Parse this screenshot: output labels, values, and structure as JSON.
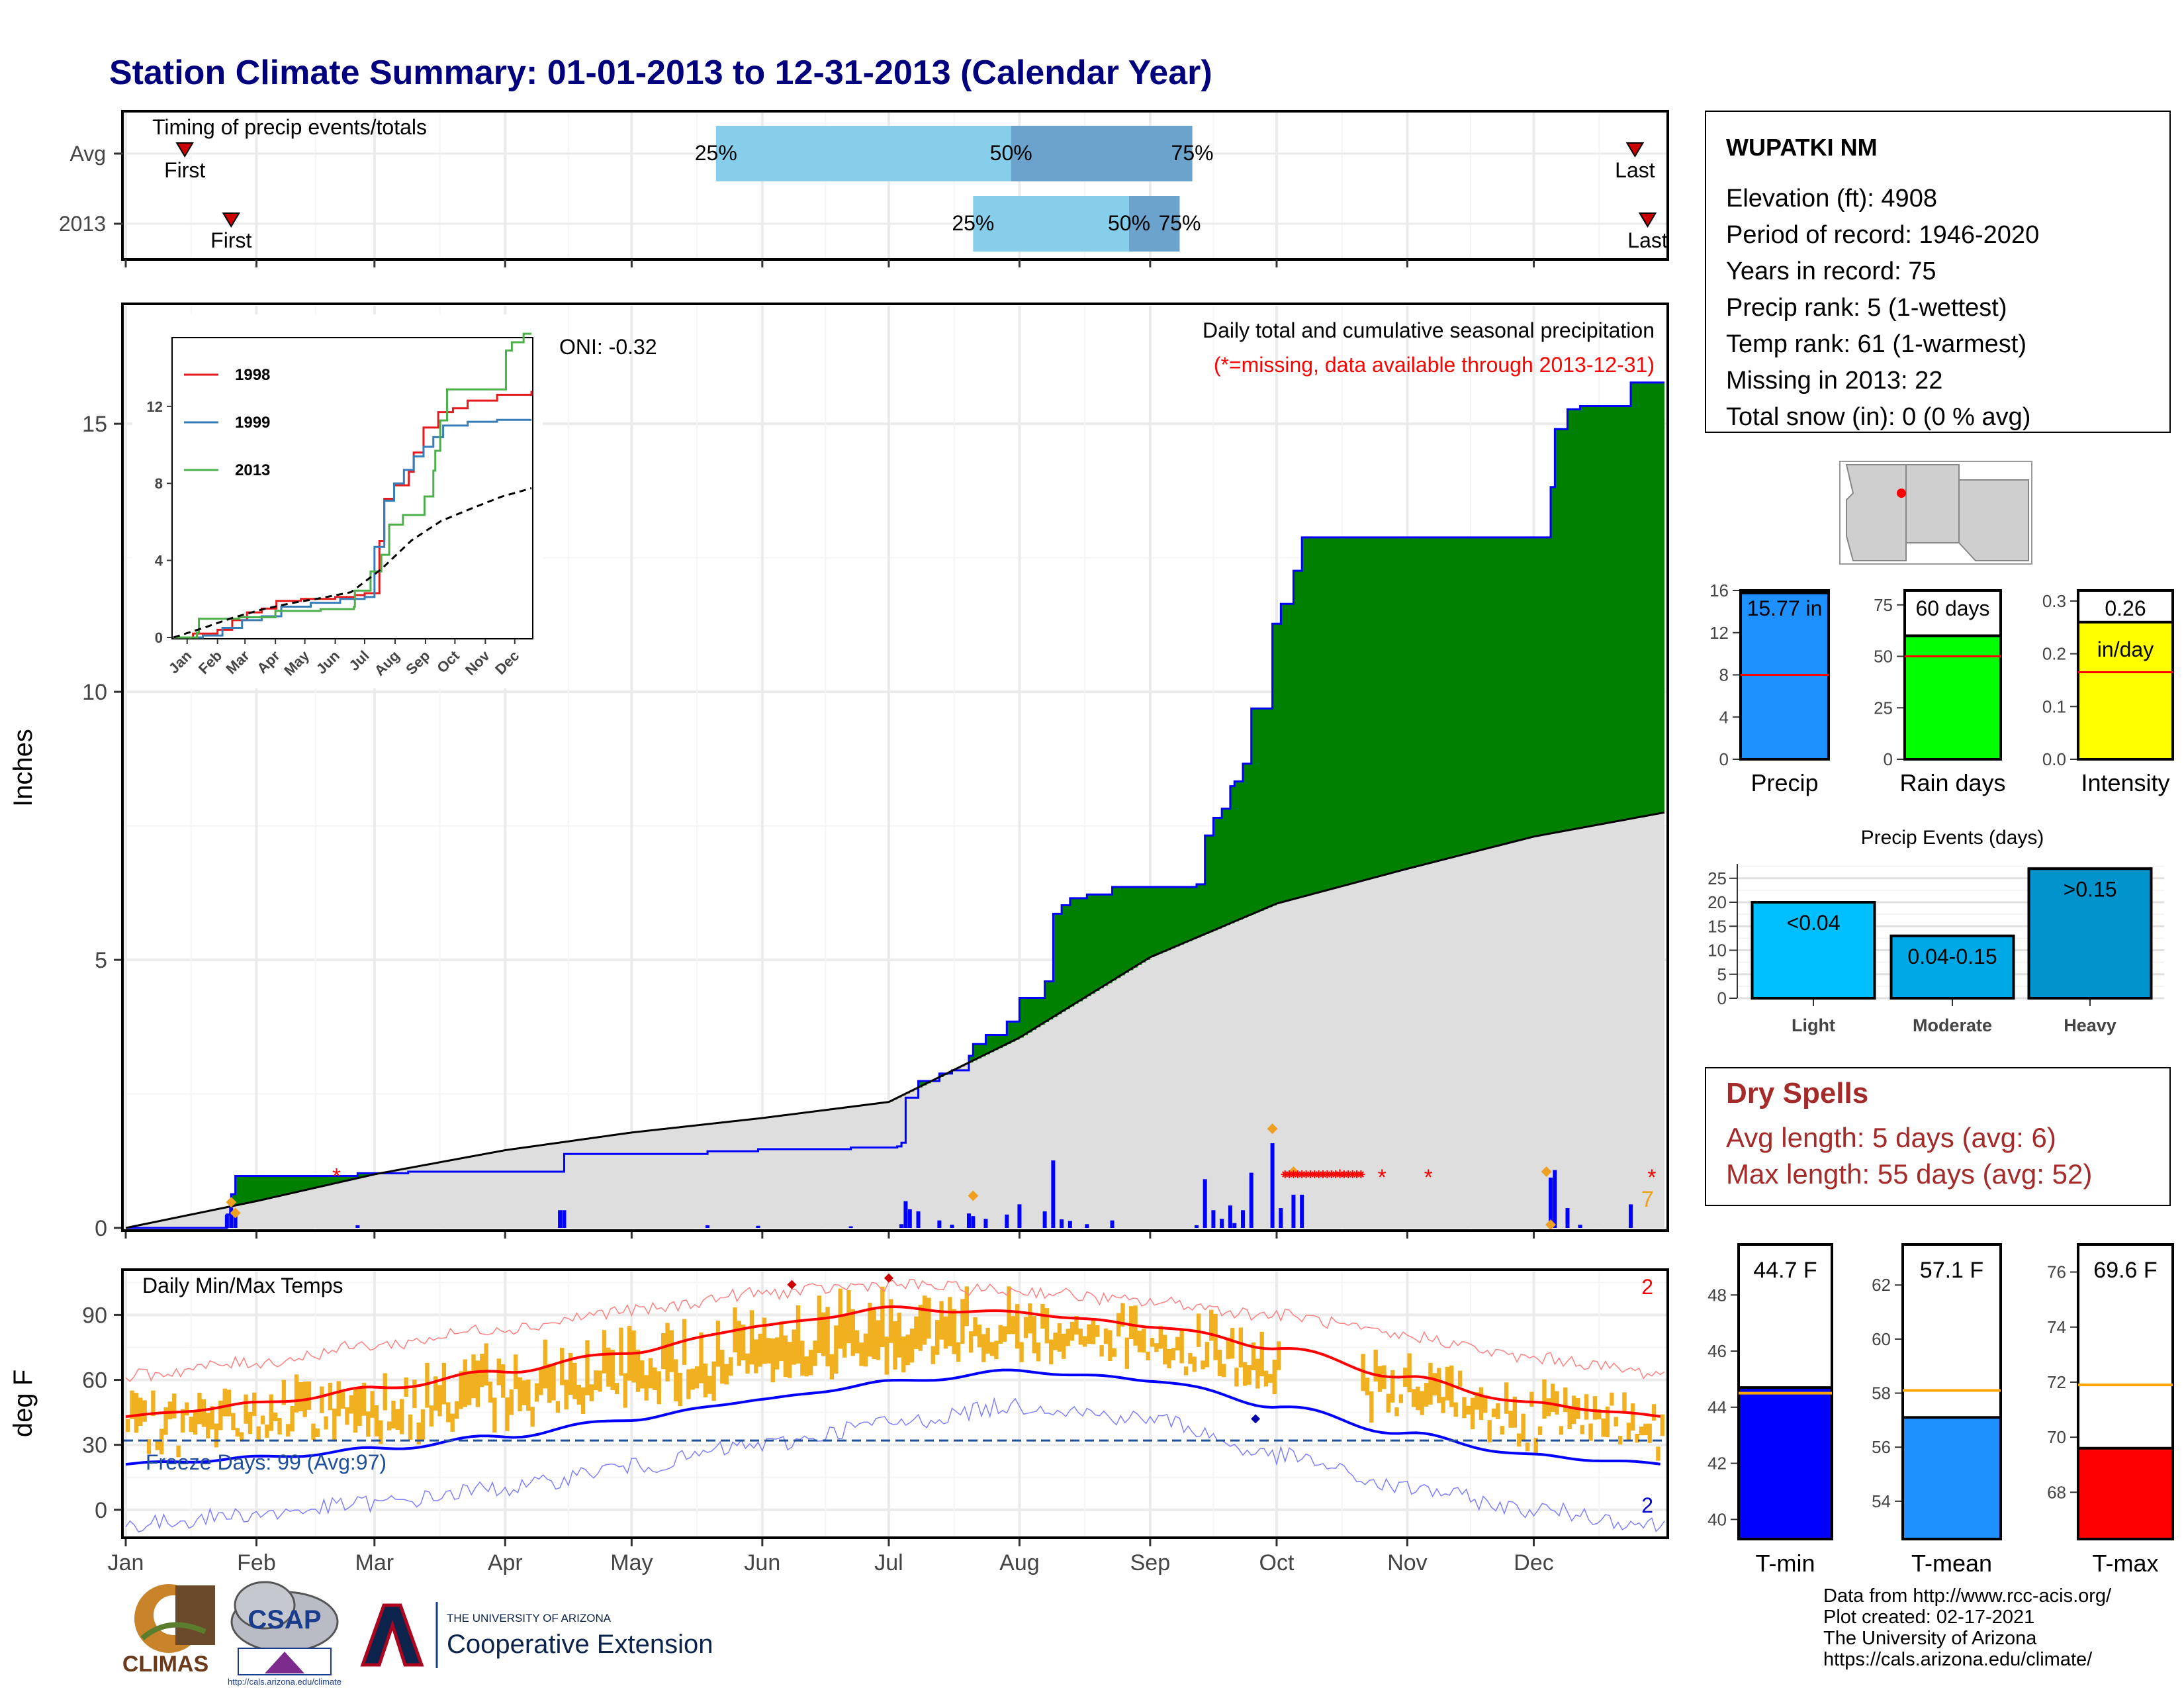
{
  "title": "Station Climate Summary: 01-01-2013 to 12-31-2013 (Calendar Year)",
  "colors": {
    "title": "#00007f",
    "cum_current": "#008000",
    "cum_deficit": "#7f5200",
    "cum_avg": "#dedede",
    "daily_bar": "#0000ff",
    "temp_bar": "#f0b020",
    "tmax_avg": "#ff0000",
    "tmin_avg": "#0000ff",
    "missing": "#ff0000",
    "dry_spells_text": "#a52a2a",
    "timing_light": "#87ceeb",
    "timing_dark": "#6ba3cc"
  },
  "months": [
    "Jan",
    "Feb",
    "Mar",
    "Apr",
    "May",
    "Jun",
    "Jul",
    "Aug",
    "Sep",
    "Oct",
    "Nov",
    "Dec"
  ],
  "timing": {
    "label": "Timing of precip events/totals",
    "rows": [
      {
        "name": "Avg",
        "first_label": "First",
        "last_label": "Last",
        "first_doy": 14,
        "last_doy": 358,
        "p25_doy": 140,
        "p50_doy": 210,
        "p75_doy": 253,
        "l25": "25%",
        "l50": "50%",
        "l75": "75%"
      },
      {
        "name": "2013",
        "first_label": "First",
        "last_label": "Last",
        "first_doy": 25,
        "last_doy": 361,
        "p25_doy": 201,
        "p50_doy": 238,
        "p75_doy": 250,
        "l25": "25%",
        "l50": "50%",
        "l75": "75%"
      }
    ]
  },
  "main_chart": {
    "ylabel": "Inches",
    "right_title": "Daily total and cumulative seasonal precipitation",
    "missing_note": "(*=missing, data available through 2013-12-31)",
    "oni": "ONI: -0.32",
    "ylim": [
      0,
      17.2
    ],
    "yticks": [
      "0",
      "5",
      "10",
      "15"
    ],
    "cum_steps": [
      [
        0,
        0
      ],
      [
        24,
        0.25
      ],
      [
        25,
        0.63
      ],
      [
        26,
        0.97
      ],
      [
        40,
        0.97
      ],
      [
        55,
        1.02
      ],
      [
        66,
        1.02
      ],
      [
        67,
        1.05
      ],
      [
        103,
        1.05
      ],
      [
        104,
        1.38
      ],
      [
        138,
        1.43
      ],
      [
        150,
        1.47
      ],
      [
        165,
        1.47
      ],
      [
        172,
        1.5
      ],
      [
        183,
        1.52
      ],
      [
        184,
        1.59
      ],
      [
        185,
        2.43
      ],
      [
        188,
        2.74
      ],
      [
        193,
        2.88
      ],
      [
        196,
        2.94
      ],
      [
        200,
        3.21
      ],
      [
        201,
        3.43
      ],
      [
        204,
        3.6
      ],
      [
        209,
        3.85
      ],
      [
        212,
        4.29
      ],
      [
        214,
        4.29
      ],
      [
        218,
        4.6
      ],
      [
        220,
        5.86
      ],
      [
        222,
        6.02
      ],
      [
        224,
        6.15
      ],
      [
        228,
        6.22
      ],
      [
        234,
        6.36
      ],
      [
        254,
        6.41
      ],
      [
        256,
        7.32
      ],
      [
        258,
        7.65
      ],
      [
        260,
        7.82
      ],
      [
        262,
        8.24
      ],
      [
        263,
        8.33
      ],
      [
        265,
        8.66
      ],
      [
        267,
        9.69
      ],
      [
        272,
        11.27
      ],
      [
        274,
        11.64
      ],
      [
        277,
        12.26
      ],
      [
        279,
        12.88
      ],
      [
        337,
        12.88
      ],
      [
        338,
        13.82
      ],
      [
        339,
        14.9
      ],
      [
        342,
        15.27
      ],
      [
        345,
        15.33
      ],
      [
        355,
        15.33
      ],
      [
        357,
        15.77
      ],
      [
        365,
        15.77
      ]
    ],
    "avg_cum_points": [
      [
        0,
        0
      ],
      [
        31,
        0.5
      ],
      [
        59,
        1.0
      ],
      [
        90,
        1.45
      ],
      [
        120,
        1.78
      ],
      [
        151,
        2.05
      ],
      [
        181,
        2.35
      ],
      [
        212,
        3.55
      ],
      [
        243,
        5.05
      ],
      [
        273,
        6.05
      ],
      [
        304,
        6.7
      ],
      [
        334,
        7.3
      ],
      [
        365,
        7.75
      ]
    ],
    "daily_bars": [
      [
        24,
        0.25
      ],
      [
        25,
        0.38
      ],
      [
        26,
        0.34
      ],
      [
        55,
        0.05
      ],
      [
        103,
        0.33
      ],
      [
        104,
        0.33
      ],
      [
        138,
        0.05
      ],
      [
        150,
        0.04
      ],
      [
        172,
        0.03
      ],
      [
        184,
        0.07
      ],
      [
        185,
        0.5
      ],
      [
        186,
        0.35
      ],
      [
        188,
        0.31
      ],
      [
        193,
        0.14
      ],
      [
        196,
        0.06
      ],
      [
        200,
        0.27
      ],
      [
        201,
        0.22
      ],
      [
        204,
        0.17
      ],
      [
        209,
        0.25
      ],
      [
        212,
        0.44
      ],
      [
        218,
        0.31
      ],
      [
        220,
        1.26
      ],
      [
        222,
        0.16
      ],
      [
        224,
        0.13
      ],
      [
        228,
        0.07
      ],
      [
        234,
        0.14
      ],
      [
        254,
        0.05
      ],
      [
        256,
        0.91
      ],
      [
        258,
        0.33
      ],
      [
        260,
        0.17
      ],
      [
        262,
        0.42
      ],
      [
        263,
        0.09
      ],
      [
        265,
        0.33
      ],
      [
        267,
        1.03
      ],
      [
        272,
        1.58
      ],
      [
        274,
        0.37
      ],
      [
        277,
        0.62
      ],
      [
        279,
        0.62
      ],
      [
        338,
        0.94
      ],
      [
        339,
        1.08
      ],
      [
        342,
        0.37
      ],
      [
        345,
        0.06
      ],
      [
        357,
        0.44
      ]
    ],
    "extreme_markers": [
      [
        25,
        0.48
      ],
      [
        26,
        0.28
      ],
      [
        201,
        0.6
      ],
      [
        272,
        1.85
      ],
      [
        277,
        1.05
      ],
      [
        337,
        1.05
      ],
      [
        338,
        0.06
      ]
    ],
    "missing_markers": [
      [
        50,
        1.02
      ],
      [
        288,
        1.0
      ],
      [
        298,
        1.0
      ],
      [
        309,
        1.0
      ],
      [
        362,
        1.0
      ]
    ],
    "missing_count": "7"
  },
  "inset_chart": {
    "xticks": [
      "Jan",
      "Feb",
      "Mar",
      "Apr",
      "May",
      "Jun",
      "Jul",
      "Aug",
      "Sep",
      "Oct",
      "Nov",
      "Dec"
    ],
    "yticks": [
      "0",
      "4",
      "8",
      "12"
    ],
    "ylim": [
      0,
      15.5
    ],
    "series": [
      {
        "name": "1998",
        "color": "#e41a1c",
        "points": [
          [
            0,
            0
          ],
          [
            20,
            0.2
          ],
          [
            45,
            0.4
          ],
          [
            60,
            0.9
          ],
          [
            75,
            1.3
          ],
          [
            90,
            1.5
          ],
          [
            105,
            1.9
          ],
          [
            130,
            2.0
          ],
          [
            165,
            2.1
          ],
          [
            185,
            2.2
          ],
          [
            195,
            2.3
          ],
          [
            210,
            5.0
          ],
          [
            215,
            7.2
          ],
          [
            225,
            7.9
          ],
          [
            240,
            8.6
          ],
          [
            245,
            9.6
          ],
          [
            255,
            10.9
          ],
          [
            270,
            11.7
          ],
          [
            285,
            11.9
          ],
          [
            300,
            12.3
          ],
          [
            330,
            12.6
          ],
          [
            365,
            12.8
          ]
        ]
      },
      {
        "name": "1999",
        "color": "#377eb8",
        "points": [
          [
            0,
            0
          ],
          [
            30,
            0.1
          ],
          [
            50,
            0.5
          ],
          [
            70,
            0.9
          ],
          [
            90,
            1.1
          ],
          [
            110,
            1.6
          ],
          [
            140,
            1.8
          ],
          [
            170,
            2.0
          ],
          [
            195,
            2.1
          ],
          [
            205,
            4.7
          ],
          [
            215,
            7.1
          ],
          [
            225,
            8.0
          ],
          [
            235,
            8.7
          ],
          [
            245,
            9.4
          ],
          [
            255,
            9.9
          ],
          [
            265,
            10.4
          ],
          [
            275,
            11.0
          ],
          [
            300,
            11.2
          ],
          [
            330,
            11.3
          ],
          [
            365,
            11.3
          ]
        ]
      },
      {
        "name": "2013",
        "color": "#4daf4a",
        "points": [
          [
            0,
            0
          ],
          [
            24,
            0.25
          ],
          [
            26,
            0.97
          ],
          [
            67,
            1.05
          ],
          [
            104,
            1.38
          ],
          [
            150,
            1.47
          ],
          [
            184,
            1.59
          ],
          [
            185,
            2.43
          ],
          [
            201,
            3.43
          ],
          [
            212,
            4.29
          ],
          [
            220,
            5.86
          ],
          [
            234,
            6.36
          ],
          [
            256,
            7.32
          ],
          [
            265,
            8.66
          ],
          [
            267,
            9.69
          ],
          [
            272,
            11.27
          ],
          [
            279,
            12.88
          ],
          [
            337,
            12.88
          ],
          [
            339,
            14.9
          ],
          [
            345,
            15.33
          ],
          [
            357,
            15.77
          ],
          [
            365,
            15.77
          ]
        ]
      }
    ],
    "avg_points": [
      [
        0,
        0
      ],
      [
        31,
        0.5
      ],
      [
        59,
        1.0
      ],
      [
        90,
        1.45
      ],
      [
        120,
        1.78
      ],
      [
        151,
        2.05
      ],
      [
        181,
        2.35
      ],
      [
        212,
        3.55
      ],
      [
        243,
        5.05
      ],
      [
        273,
        6.05
      ],
      [
        304,
        6.7
      ],
      [
        334,
        7.3
      ],
      [
        365,
        7.75
      ]
    ]
  },
  "temp_chart": {
    "ylabel": "deg F",
    "label": "Daily Min/Max Temps",
    "freeze": "Freeze Days: 99 (Avg:97)",
    "ylim": [
      -12,
      110
    ],
    "yticks": [
      "0",
      "30",
      "60",
      "90"
    ],
    "freeze_line": 32,
    "count_top": "2",
    "count_bottom": "2",
    "tmax_avg_points": [
      [
        0,
        43
      ],
      [
        31,
        49
      ],
      [
        59,
        56
      ],
      [
        90,
        64
      ],
      [
        120,
        73
      ],
      [
        151,
        85
      ],
      [
        181,
        93
      ],
      [
        212,
        91
      ],
      [
        243,
        85
      ],
      [
        273,
        75
      ],
      [
        304,
        61
      ],
      [
        334,
        49
      ],
      [
        365,
        43
      ]
    ],
    "tmin_avg_points": [
      [
        0,
        21
      ],
      [
        31,
        24
      ],
      [
        59,
        28
      ],
      [
        90,
        34
      ],
      [
        120,
        42
      ],
      [
        151,
        51
      ],
      [
        181,
        59
      ],
      [
        212,
        64
      ],
      [
        243,
        60
      ],
      [
        273,
        48
      ],
      [
        304,
        35
      ],
      [
        334,
        25
      ],
      [
        365,
        21
      ]
    ],
    "rec_max_points": [
      [
        0,
        62
      ],
      [
        31,
        68
      ],
      [
        59,
        76
      ],
      [
        90,
        84
      ],
      [
        120,
        92
      ],
      [
        151,
        100
      ],
      [
        181,
        104
      ],
      [
        212,
        101
      ],
      [
        243,
        96
      ],
      [
        273,
        90
      ],
      [
        304,
        80
      ],
      [
        334,
        70
      ],
      [
        365,
        63
      ]
    ],
    "rec_min_points": [
      [
        0,
        -7
      ],
      [
        31,
        -2
      ],
      [
        59,
        3
      ],
      [
        90,
        10
      ],
      [
        120,
        20
      ],
      [
        151,
        30
      ],
      [
        181,
        40
      ],
      [
        212,
        48
      ],
      [
        243,
        42
      ],
      [
        273,
        25
      ],
      [
        304,
        10
      ],
      [
        334,
        0
      ],
      [
        365,
        -7
      ]
    ],
    "missing_range": [
      274,
      292
    ]
  },
  "info": {
    "station": "WUPATKI NM",
    "lines": [
      "Elevation (ft): 4908",
      "Period of record: 1946-2020",
      "Years in record: 75",
      "Precip rank: 5 (1-wettest)",
      "Temp rank: 61 (1-warmest)",
      "Missing in 2013: 22",
      "Total snow (in): 0 (0 % avg)"
    ]
  },
  "mini_bars": [
    {
      "name": "Precip",
      "label": "15.77 in",
      "value": 15.77,
      "avg": 8.0,
      "max": 16,
      "yticks": [
        "0",
        "4",
        "8",
        "12",
        "16"
      ],
      "color": "#1e90ff"
    },
    {
      "name": "Rain days",
      "label": "60 days",
      "value": 60,
      "avg": 50,
      "max": 82,
      "yticks": [
        "0",
        "25",
        "50",
        "75"
      ],
      "color": "#00ff00"
    },
    {
      "name": "Intensity",
      "label": "0.26",
      "label2": "in/day",
      "value": 0.26,
      "avg": 0.165,
      "max": 0.32,
      "yticks": [
        "0.0",
        "0.1",
        "0.2",
        "0.3"
      ],
      "color": "#ffff00"
    }
  ],
  "precip_events": {
    "title": "Precip Events (days)",
    "yticks": [
      "0",
      "5",
      "10",
      "15",
      "20",
      "25"
    ],
    "ymax": 28,
    "bars": [
      {
        "category": "Light",
        "label": "<0.04",
        "value": 20,
        "color": "#00bfff"
      },
      {
        "category": "Moderate",
        "label": "0.04-0.15",
        "value": 13,
        "color": "#00a9e6"
      },
      {
        "category": "Heavy",
        "label": ">0.15",
        "value": 27,
        "color": "#0093cc"
      }
    ]
  },
  "dry_spells": {
    "title": "Dry Spells",
    "avg": "Avg length: 5 days (avg: 6)",
    "max": "Max length: 55 days (avg: 52)"
  },
  "temp_bars": [
    {
      "name": "T-min",
      "label": "44.7 F",
      "value": 44.7,
      "avg": 44.5,
      "ymin": 39.3,
      "ymax": 49.8,
      "yticks": [
        "40",
        "42",
        "44",
        "46",
        "48"
      ],
      "color": "#0000ff"
    },
    {
      "name": "T-mean",
      "label": "57.1 F",
      "value": 57.1,
      "avg": 58.1,
      "ymin": 52.6,
      "ymax": 63.5,
      "yticks": [
        "54",
        "56",
        "58",
        "60",
        "62"
      ],
      "color": "#1e90ff"
    },
    {
      "name": "T-max",
      "label": "69.6 F",
      "value": 69.6,
      "avg": 71.9,
      "ymin": 66.3,
      "ymax": 77.0,
      "yticks": [
        "68",
        "70",
        "72",
        "74",
        "76"
      ],
      "color": "#ff0000"
    }
  ],
  "footer": {
    "lines": [
      "Data from http://www.rcc-acis.org/",
      "Plot created: 02-17-2021",
      "The University of Arizona",
      "https://cals.arizona.edu/climate/"
    ]
  },
  "logos": {
    "climas": "CLIMAS",
    "csap": "CSAP",
    "csap_url": "http://cals.arizona.edu/climate",
    "ua_small": "THE UNIVERSITY OF ARIZONA",
    "coop": "Cooperative Extension"
  }
}
